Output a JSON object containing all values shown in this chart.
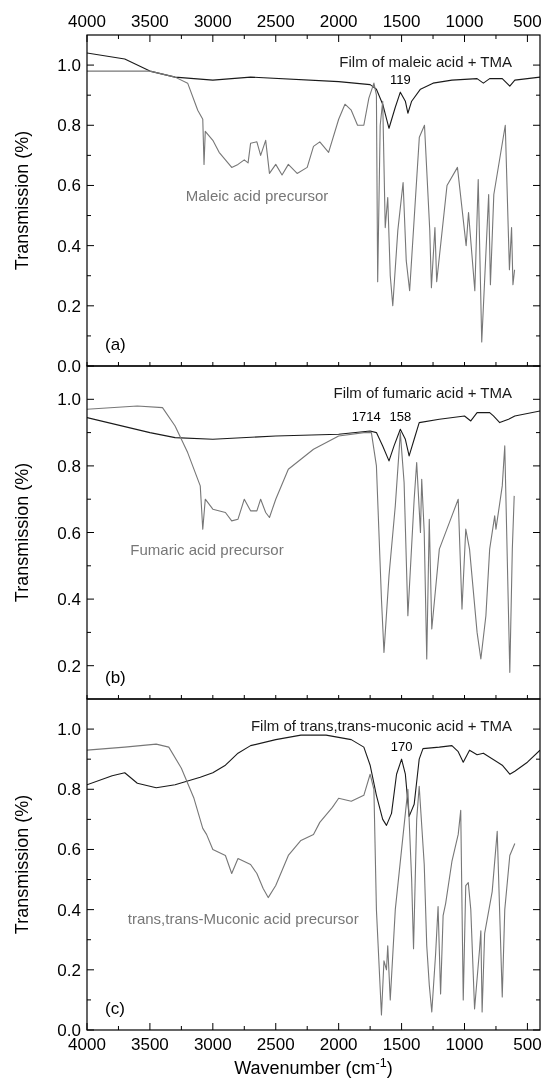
{
  "chart_data": [
    {
      "type": "line",
      "ylabel": "Transmission (%)",
      "annotations": [
        "(a)",
        "119"
      ],
      "xlim": [
        4000,
        400
      ],
      "xticks": [
        {
          "value": 4000,
          "label": null
        },
        {
          "value": 3750,
          "label": null
        },
        {
          "value": 3500,
          "label": null
        },
        {
          "value": 3250,
          "label": null
        },
        {
          "value": 3000,
          "label": null
        },
        {
          "value": 2750,
          "label": null
        },
        {
          "value": 2500,
          "label": null
        },
        {
          "value": 2250,
          "label": null
        },
        {
          "value": 2000,
          "label": null
        },
        {
          "value": 1750,
          "label": null
        },
        {
          "value": 1500,
          "label": null
        },
        {
          "value": 1250,
          "label": null
        },
        {
          "value": 1000,
          "label": null
        },
        {
          "value": 750,
          "label": null
        },
        {
          "value": 500,
          "label": null
        }
      ],
      "x2lim": [
        4000,
        400
      ],
      "x2ticks": [
        4000,
        {
          "value": 3750,
          "label": null
        },
        3500,
        {
          "value": 3250,
          "label": null
        },
        3000,
        {
          "value": 2750,
          "label": null
        },
        2500,
        {
          "value": 2250,
          "label": null
        },
        2000,
        {
          "value": 1750,
          "label": null
        },
        1500,
        {
          "value": 1250,
          "label": null
        },
        1000,
        {
          "value": 750,
          "label": null
        },
        500
      ],
      "ylim": [
        0,
        1.1
      ],
      "yticks": [
        {
          "value": 0,
          "label": "0.0"
        },
        {
          "value": 0.1,
          "label": null
        },
        {
          "value": 0.2,
          "label": "0.2"
        },
        {
          "value": 0.3,
          "label": null
        },
        {
          "value": 0.4,
          "label": "0.4"
        },
        {
          "value": 0.5,
          "label": null
        },
        {
          "value": 0.6,
          "label": "0.6"
        },
        {
          "value": 0.7,
          "label": null
        },
        {
          "value": 0.8,
          "label": "0.8"
        },
        {
          "value": 0.9,
          "label": null
        },
        {
          "value": 1.0,
          "label": "1.0"
        }
      ],
      "tick_labels": "y",
      "grid": false,
      "legend": false,
      "series": [
        {
          "name": "Film of maleic acid + TMA",
          "color": "#1a1a1a",
          "x": [
            4000,
            3700,
            3500,
            3300,
            3000,
            2700,
            2000,
            1750,
            1700,
            1650,
            1600,
            1550,
            1510,
            1470,
            1450,
            1420,
            1350,
            1300,
            1250,
            1100,
            900,
            850,
            800,
            700,
            640,
            600,
            400
          ],
          "values": [
            1.04,
            1.02,
            0.98,
            0.96,
            0.95,
            0.96,
            0.945,
            0.935,
            0.92,
            0.87,
            0.79,
            0.86,
            0.91,
            0.88,
            0.84,
            0.88,
            0.92,
            0.93,
            0.94,
            0.95,
            0.955,
            0.94,
            0.955,
            0.955,
            0.93,
            0.95,
            0.96
          ]
        },
        {
          "name": "Maleic acid precursor",
          "color": "#777777",
          "x": [
            4000,
            3500,
            3300,
            3200,
            3120,
            3080,
            3070,
            3060,
            3000,
            2950,
            2850,
            2800,
            2750,
            2720,
            2700,
            2650,
            2620,
            2580,
            2550,
            2500,
            2450,
            2400,
            2330,
            2250,
            2200,
            2150,
            2080,
            2000,
            1950,
            1900,
            1850,
            1800,
            1760,
            1720,
            1700,
            1690,
            1670,
            1650,
            1630,
            1610,
            1590,
            1570,
            1530,
            1488,
            1463,
            1436,
            1359,
            1318,
            1276,
            1263,
            1235,
            1221,
            1139,
            1056,
            987,
            968,
            918,
            891,
            863,
            808,
            794,
            767,
            676,
            643,
            626,
            615,
            602
          ],
          "values": [
            0.98,
            0.98,
            0.96,
            0.94,
            0.85,
            0.82,
            0.67,
            0.78,
            0.75,
            0.71,
            0.66,
            0.67,
            0.685,
            0.675,
            0.74,
            0.745,
            0.7,
            0.75,
            0.64,
            0.67,
            0.635,
            0.67,
            0.64,
            0.66,
            0.73,
            0.745,
            0.71,
            0.82,
            0.87,
            0.85,
            0.8,
            0.8,
            0.89,
            0.94,
            0.9,
            0.28,
            0.8,
            0.88,
            0.46,
            0.56,
            0.3,
            0.2,
            0.45,
            0.61,
            0.35,
            0.25,
            0.76,
            0.8,
            0.45,
            0.26,
            0.46,
            0.28,
            0.6,
            0.66,
            0.4,
            0.51,
            0.25,
            0.62,
            0.08,
            0.57,
            0.27,
            0.57,
            0.8,
            0.32,
            0.46,
            0.27,
            0.32
          ]
        }
      ]
    },
    {
      "type": "line",
      "ylabel": "Transmission (%)",
      "annotations": [
        "(b)",
        "1714",
        "158"
      ],
      "xlim": [
        4000,
        400
      ],
      "xticks": [
        {
          "value": 4000,
          "label": null
        },
        {
          "value": 3750,
          "label": null
        },
        {
          "value": 3500,
          "label": null
        },
        {
          "value": 3250,
          "label": null
        },
        {
          "value": 3000,
          "label": null
        },
        {
          "value": 2750,
          "label": null
        },
        {
          "value": 2500,
          "label": null
        },
        {
          "value": 2250,
          "label": null
        },
        {
          "value": 2000,
          "label": null
        },
        {
          "value": 1750,
          "label": null
        },
        {
          "value": 1500,
          "label": null
        },
        {
          "value": 1250,
          "label": null
        },
        {
          "value": 1000,
          "label": null
        },
        {
          "value": 750,
          "label": null
        },
        {
          "value": 500,
          "label": null
        }
      ],
      "ylim": [
        0.1,
        1.1
      ],
      "yticks": [
        {
          "value": 0.2,
          "label": "0.2"
        },
        {
          "value": 0.3,
          "label": null
        },
        {
          "value": 0.4,
          "label": "0.4"
        },
        {
          "value": 0.5,
          "label": null
        },
        {
          "value": 0.6,
          "label": "0.6"
        },
        {
          "value": 0.7,
          "label": null
        },
        {
          "value": 0.8,
          "label": "0.8"
        },
        {
          "value": 0.9,
          "label": null
        },
        {
          "value": 1.0,
          "label": "1.0"
        }
      ],
      "tick_labels": "y",
      "grid": false,
      "legend": false,
      "series": [
        {
          "name": "Film of fumaric acid + TMA",
          "color": "#1a1a1a",
          "x": [
            4000,
            3500,
            3300,
            3000,
            2500,
            2000,
            1750,
            1700,
            1650,
            1600,
            1560,
            1510,
            1470,
            1440,
            1400,
            1360,
            1200,
            1000,
            950,
            900,
            800,
            770,
            720,
            650,
            600,
            400
          ],
          "values": [
            0.945,
            0.9,
            0.885,
            0.88,
            0.89,
            0.895,
            0.905,
            0.9,
            0.86,
            0.815,
            0.86,
            0.91,
            0.88,
            0.83,
            0.88,
            0.93,
            0.94,
            0.95,
            0.935,
            0.96,
            0.96,
            0.95,
            0.93,
            0.94,
            0.95,
            0.965
          ]
        },
        {
          "name": "Fumaric acid precursor",
          "color": "#777777",
          "x": [
            4000,
            3600,
            3400,
            3300,
            3200,
            3100,
            3080,
            3060,
            3000,
            2900,
            2850,
            2800,
            2750,
            2700,
            2650,
            2620,
            2580,
            2550,
            2500,
            2400,
            2300,
            2200,
            2000,
            1800,
            1740,
            1700,
            1660,
            1640,
            1600,
            1550,
            1510,
            1480,
            1450,
            1400,
            1380,
            1350,
            1340,
            1320,
            1300,
            1280,
            1260,
            1200,
            1100,
            1050,
            1020,
            990,
            960,
            900,
            870,
            830,
            800,
            760,
            750,
            700,
            680,
            640,
            620,
            605
          ],
          "values": [
            0.97,
            0.98,
            0.975,
            0.92,
            0.84,
            0.74,
            0.61,
            0.7,
            0.67,
            0.66,
            0.635,
            0.64,
            0.7,
            0.665,
            0.665,
            0.7,
            0.66,
            0.645,
            0.7,
            0.79,
            0.82,
            0.85,
            0.89,
            0.9,
            0.9,
            0.8,
            0.4,
            0.24,
            0.47,
            0.68,
            0.9,
            0.75,
            0.35,
            0.7,
            0.81,
            0.6,
            0.76,
            0.6,
            0.22,
            0.64,
            0.31,
            0.55,
            0.65,
            0.7,
            0.37,
            0.61,
            0.55,
            0.3,
            0.22,
            0.35,
            0.55,
            0.65,
            0.61,
            0.74,
            0.86,
            0.18,
            0.55,
            0.71
          ]
        }
      ]
    },
    {
      "type": "line",
      "ylabel": "Transmission (%)",
      "xlabel": "Wavenumber (cm$^{-1}$)",
      "annotations": [
        "(c)",
        "170"
      ],
      "xlim": [
        4000,
        400
      ],
      "xticks": [
        4000,
        {
          "value": 3750,
          "label": null
        },
        3500,
        {
          "value": 3250,
          "label": null
        },
        3000,
        {
          "value": 2750,
          "label": null
        },
        2500,
        {
          "value": 2250,
          "label": null
        },
        2000,
        {
          "value": 1750,
          "label": null
        },
        1500,
        {
          "value": 1250,
          "label": null
        },
        1000,
        {
          "value": 750,
          "label": null
        },
        500
      ],
      "ylim": [
        0,
        1.1
      ],
      "yticks": [
        {
          "value": 0,
          "label": "0.0"
        },
        {
          "value": 0.1,
          "label": null
        },
        {
          "value": 0.2,
          "label": "0.2"
        },
        {
          "value": 0.3,
          "label": null
        },
        {
          "value": 0.4,
          "label": "0.4"
        },
        {
          "value": 0.5,
          "label": null
        },
        {
          "value": 0.6,
          "label": "0.6"
        },
        {
          "value": 0.7,
          "label": null
        },
        {
          "value": 0.8,
          "label": "0.8"
        },
        {
          "value": 0.9,
          "label": null
        },
        {
          "value": 1.0,
          "label": "1.0"
        }
      ],
      "grid": false,
      "legend": false,
      "series": [
        {
          "name": "Film of trans,trans-muconic acid + TMA",
          "color": "#1a1a1a",
          "x": [
            4000,
            3800,
            3700,
            3600,
            3450,
            3300,
            3100,
            3000,
            2900,
            2800,
            2700,
            2500,
            2300,
            2100,
            1900,
            1800,
            1750,
            1700,
            1650,
            1620,
            1580,
            1540,
            1500,
            1470,
            1440,
            1400,
            1360,
            1330,
            1200,
            1100,
            1050,
            1010,
            960,
            900,
            850,
            700,
            640,
            600,
            500,
            400
          ],
          "values": [
            0.815,
            0.845,
            0.855,
            0.82,
            0.805,
            0.815,
            0.84,
            0.855,
            0.88,
            0.92,
            0.945,
            0.965,
            0.98,
            0.98,
            0.965,
            0.94,
            0.88,
            0.78,
            0.7,
            0.68,
            0.72,
            0.85,
            0.9,
            0.85,
            0.71,
            0.75,
            0.9,
            0.935,
            0.94,
            0.945,
            0.925,
            0.89,
            0.93,
            0.915,
            0.92,
            0.88,
            0.85,
            0.86,
            0.89,
            0.93
          ]
        },
        {
          "name": "trans,trans-Muconic acid precursor",
          "color": "#777777",
          "x": [
            4000,
            3700,
            3450,
            3350,
            3250,
            3150,
            3080,
            3050,
            3000,
            2900,
            2850,
            2800,
            2700,
            2650,
            2600,
            2560,
            2500,
            2400,
            2300,
            2200,
            2150,
            2050,
            2000,
            1900,
            1800,
            1750,
            1720,
            1700,
            1660,
            1640,
            1620,
            1610,
            1590,
            1550,
            1470,
            1450,
            1420,
            1405,
            1380,
            1360,
            1320,
            1300,
            1280,
            1260,
            1230,
            1210,
            1190,
            1170,
            1150,
            1100,
            1050,
            1030,
            1010,
            990,
            970,
            950,
            920,
            880,
            870,
            860,
            840,
            780,
            740,
            700,
            680,
            640,
            600
          ],
          "values": [
            0.93,
            0.94,
            0.95,
            0.94,
            0.87,
            0.77,
            0.67,
            0.65,
            0.6,
            0.58,
            0.52,
            0.57,
            0.55,
            0.52,
            0.47,
            0.44,
            0.48,
            0.58,
            0.63,
            0.65,
            0.69,
            0.74,
            0.77,
            0.76,
            0.78,
            0.85,
            0.8,
            0.4,
            0.05,
            0.23,
            0.2,
            0.28,
            0.1,
            0.4,
            0.72,
            0.8,
            0.5,
            0.27,
            0.7,
            0.81,
            0.55,
            0.28,
            0.15,
            0.06,
            0.25,
            0.41,
            0.12,
            0.38,
            0.42,
            0.56,
            0.65,
            0.73,
            0.1,
            0.48,
            0.49,
            0.4,
            0.07,
            0.27,
            0.33,
            0.06,
            0.32,
            0.46,
            0.66,
            0.11,
            0.4,
            0.58,
            0.62
          ]
        }
      ]
    }
  ]
}
